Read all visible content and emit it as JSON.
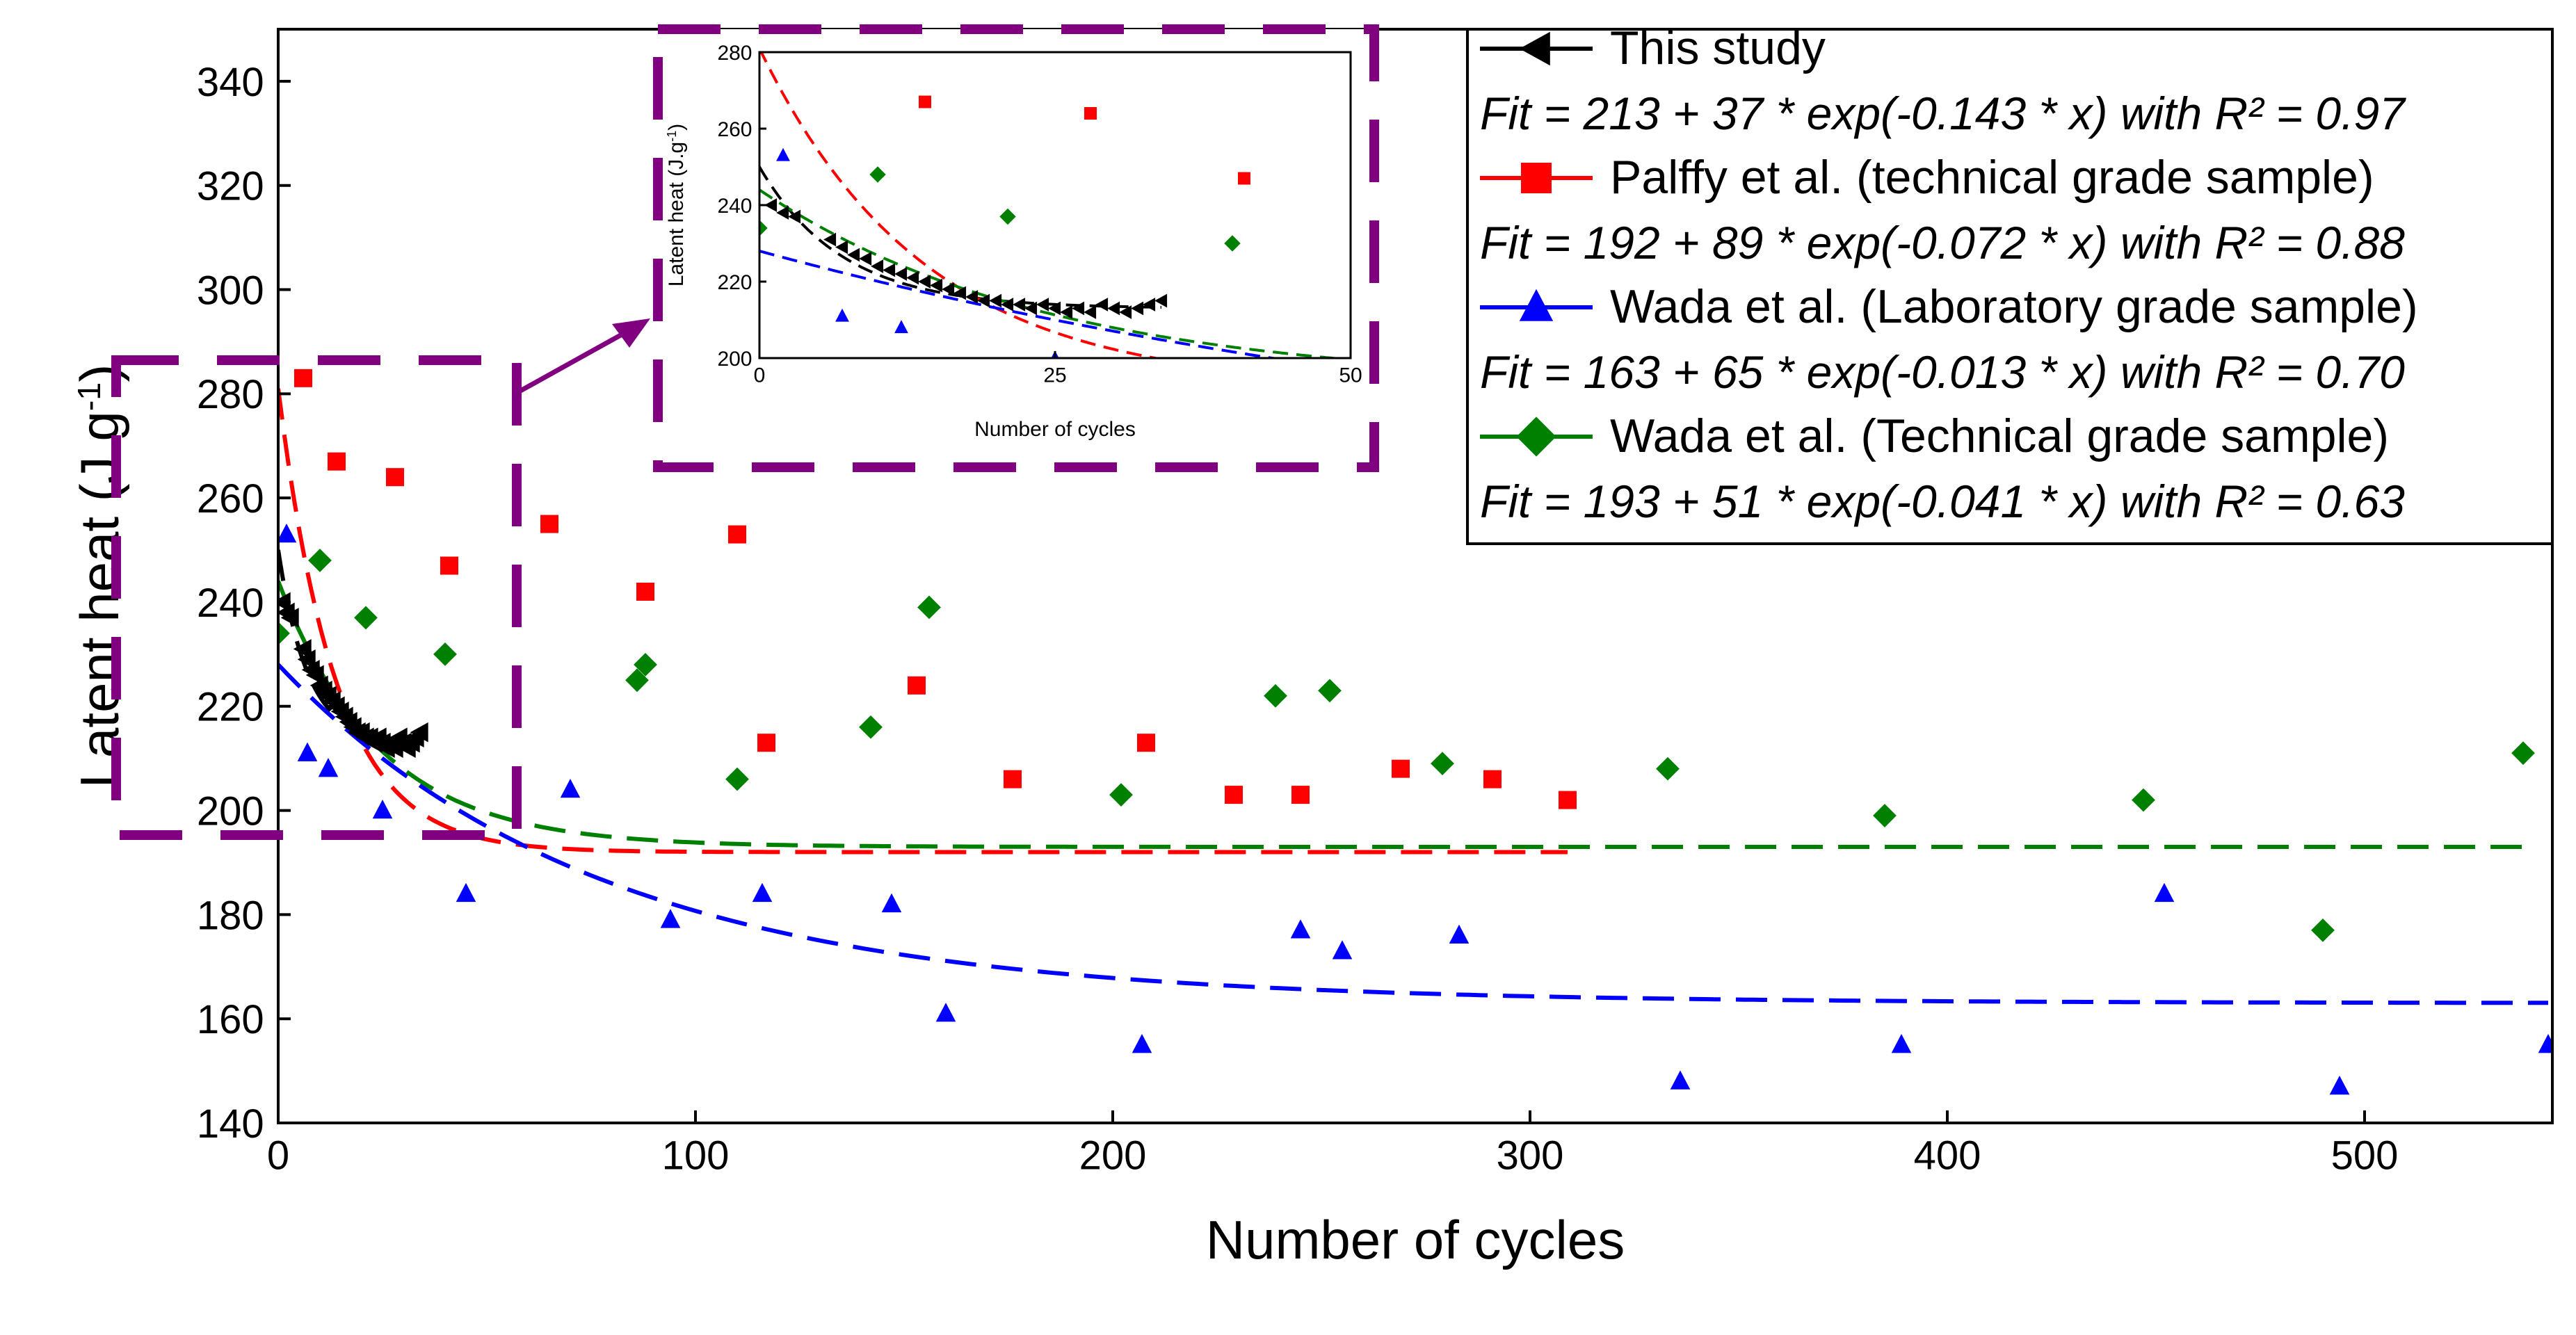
{
  "chart_data": {
    "type": "scatter",
    "xlabel": "Number of cycles",
    "ylabel": "Latent heat (J.g",
    "ylabel_sup": "-1",
    "ylabel_close": ")",
    "xlim": [
      0,
      545
    ],
    "ylim": [
      140,
      350
    ],
    "xticks": [
      0,
      100,
      200,
      300,
      400,
      500
    ],
    "yticks": [
      140,
      160,
      180,
      200,
      220,
      240,
      260,
      280,
      300,
      320,
      340
    ],
    "series": [
      {
        "name": "This study",
        "color": "#000000",
        "marker": "triangle-left",
        "fit_label": "Fit = 213 + 37 * exp(-0.143 * x) with R² = 0.97",
        "fit": {
          "a": 213,
          "b": 37,
          "k": 0.143
        },
        "x": [
          1,
          2,
          3,
          6,
          7,
          8,
          9,
          10,
          11,
          12,
          13,
          14,
          15,
          16,
          17,
          18,
          19,
          20,
          21,
          22,
          23,
          24,
          25,
          26,
          27,
          28,
          29,
          30,
          31,
          32,
          33,
          34
        ],
        "y": [
          240,
          238,
          237,
          231,
          229,
          227,
          226,
          224,
          223,
          222,
          221,
          220,
          219,
          218,
          217,
          216,
          215,
          215,
          214,
          214,
          213,
          214,
          213,
          212,
          213,
          212,
          214,
          213,
          212,
          213,
          214,
          215
        ]
      },
      {
        "name": "Palffy et al. (technical grade sample)",
        "color": "#ff0000",
        "marker": "square",
        "fit_label": "Fit = 192 + 89 * exp(-0.072 * x) with R² = 0.88",
        "fit": {
          "a": 192,
          "b": 89,
          "k": 0.072
        },
        "x": [
          6,
          14,
          28,
          41,
          65,
          88,
          110,
          117,
          153,
          176,
          208,
          229,
          245,
          269,
          291,
          309
        ],
        "y": [
          283,
          267,
          264,
          247,
          255,
          242,
          253,
          213,
          224,
          206,
          213,
          203,
          203,
          208,
          206,
          202
        ]
      },
      {
        "name": "Wada et al. (Laboratory grade sample)",
        "color": "#0000ff",
        "marker": "triangle-up",
        "fit_label": "Fit = 163 + 65 * exp(-0.013 * x) with R² = 0.70",
        "fit": {
          "a": 163,
          "b": 65,
          "k": 0.013
        },
        "x": [
          2,
          7,
          12,
          25,
          45,
          70,
          94,
          116,
          147,
          160,
          207,
          245,
          255,
          283,
          336,
          389,
          452,
          494,
          544
        ],
        "y": [
          253,
          211,
          208,
          200,
          184,
          204,
          179,
          184,
          182,
          161,
          155,
          177,
          173,
          176,
          148,
          155,
          184,
          147,
          155
        ]
      },
      {
        "name": "Wada et al. (Technical grade sample)",
        "color": "#008000",
        "marker": "diamond",
        "fit_label": "Fit = 193 + 51 * exp(-0.041 * x) with R² = 0.63",
        "fit": {
          "a": 193,
          "b": 51,
          "k": 0.041
        },
        "x": [
          0,
          10,
          21,
          40,
          86,
          88,
          110,
          142,
          156,
          202,
          239,
          252,
          279,
          333,
          385,
          447,
          490,
          538
        ],
        "y": [
          234,
          248,
          237,
          230,
          225,
          228,
          206,
          216,
          239,
          203,
          222,
          223,
          209,
          208,
          199,
          202,
          177,
          211
        ]
      }
    ],
    "inset": {
      "xlabel": "Number of cycles",
      "ylabel": "Latent heat (J.g",
      "ylabel_sup": "-1",
      "ylabel_close": ")",
      "xlim": [
        0,
        50
      ],
      "ylim": [
        200,
        280
      ],
      "xticks": [
        0,
        25,
        50
      ],
      "yticks": [
        200,
        220,
        240,
        260,
        280
      ]
    }
  }
}
